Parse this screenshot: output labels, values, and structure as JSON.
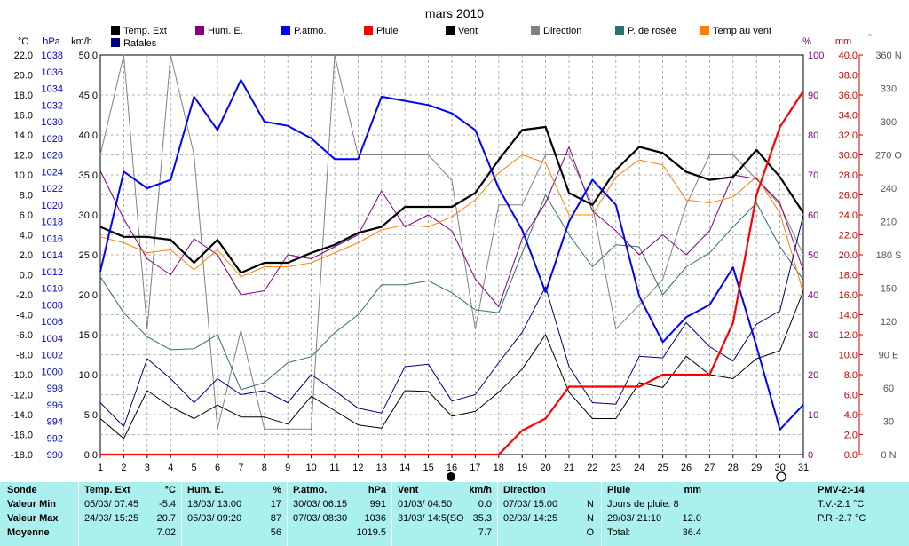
{
  "chart_data": {
    "type": "line",
    "title": "mars 2010",
    "x": [
      1,
      2,
      3,
      4,
      5,
      6,
      7,
      8,
      9,
      10,
      11,
      12,
      13,
      14,
      15,
      16,
      17,
      18,
      19,
      20,
      21,
      22,
      23,
      24,
      25,
      26,
      27,
      28,
      29,
      30,
      31
    ],
    "axes": {
      "temp": {
        "unit": "°C",
        "range": [
          -18,
          22
        ],
        "step": 2
      },
      "pressure": {
        "unit": "hPa",
        "range": [
          990,
          1038
        ],
        "step": 2
      },
      "wind": {
        "unit": "km/h",
        "range": [
          0,
          50
        ],
        "step": 5
      },
      "humidity": {
        "unit": "%",
        "range": [
          0,
          100
        ],
        "step": 10
      },
      "rain": {
        "unit": "mm",
        "range": [
          0,
          40
        ],
        "step": 2
      },
      "direction": {
        "unit": "°",
        "range": [
          0,
          360
        ],
        "step": 30,
        "labels": [
          "0 N",
          "30",
          "60",
          "90 E",
          "120",
          "150",
          "180 S",
          "210",
          "240",
          "270 O",
          "300",
          "330",
          "360 N"
        ]
      }
    },
    "legend": [
      {
        "name": "Temp. Ext",
        "color": "#000000"
      },
      {
        "name": "Hum. E.",
        "color": "#800080"
      },
      {
        "name": "P.atmo.",
        "color": "#0000ff"
      },
      {
        "name": "Pluie",
        "color": "#ff0000"
      },
      {
        "name": "Vent",
        "color": "#000000"
      },
      {
        "name": "Direction",
        "color": "#808080"
      },
      {
        "name": "P. de rosée",
        "color": "#2f6f6f"
      },
      {
        "name": "Temp au vent",
        "color": "#ff8000"
      },
      {
        "name": "Rafales",
        "color": "#000080"
      }
    ],
    "series": [
      {
        "name": "Temp. Ext",
        "axis": "temp",
        "color": "#000000",
        "width": 2.2,
        "values": [
          4.8,
          3.8,
          3.8,
          3.5,
          1.2,
          3.5,
          0.2,
          1.2,
          1.2,
          2.2,
          3.0,
          4.2,
          4.8,
          6.8,
          6.8,
          6.8,
          8.2,
          11.5,
          14.5,
          14.8,
          8.2,
          7.0,
          10.5,
          12.8,
          12.2,
          10.3,
          9.5,
          9.8,
          12.5,
          9.8,
          6.2
        ]
      },
      {
        "name": "Temp au vent",
        "axis": "temp",
        "color": "#ff8000",
        "width": 1,
        "values": [
          3.8,
          3.2,
          2.2,
          2.5,
          0.5,
          2.5,
          -0.2,
          0.8,
          0.8,
          1.2,
          2.2,
          3.2,
          4.5,
          5.0,
          4.8,
          5.8,
          7.5,
          10.2,
          12.0,
          11.2,
          6.0,
          6.0,
          9.8,
          11.5,
          11.0,
          7.5,
          7.2,
          7.8,
          9.8,
          6.2,
          -1.8
        ]
      },
      {
        "name": "P. de rosée",
        "axis": "temp",
        "color": "#2f6f6f",
        "width": 1,
        "values": [
          -0.2,
          -3.8,
          -6.2,
          -7.5,
          -7.4,
          -6.0,
          -11.5,
          -10.8,
          -8.8,
          -8.2,
          -5.8,
          -4.0,
          -1.0,
          -1.0,
          -0.6,
          -1.8,
          -3.5,
          -3.8,
          2.2,
          8.0,
          4.0,
          0.8,
          3.0,
          2.8,
          -2.0,
          0.8,
          2.2,
          4.8,
          7.2,
          2.8,
          -0.5
        ]
      },
      {
        "name": "Hum. E.",
        "axis": "humidity",
        "color": "#800080",
        "width": 1,
        "values": [
          71,
          59,
          49,
          45,
          54,
          50,
          40,
          41,
          50,
          49,
          52,
          55,
          66,
          57,
          60,
          56,
          44,
          37,
          54,
          63,
          77,
          61,
          56,
          50,
          55,
          50,
          56,
          70,
          69,
          63,
          46
        ]
      },
      {
        "name": "P.atmo.",
        "axis": "pressure",
        "color": "#0000ff",
        "width": 2,
        "values": [
          1012,
          1024,
          1022,
          1023,
          1033,
          1029,
          1035,
          1030,
          1029.5,
          1028,
          1025.5,
          1025.5,
          1033,
          1032.5,
          1032,
          1031,
          1029,
          1022,
          1017,
          1009.5,
          1018,
          1023,
          1020,
          1009,
          1003.5,
          1006.5,
          1008,
          1012.5,
          1003,
          993,
          996
        ]
      },
      {
        "name": "Rafales",
        "axis": "wind",
        "color": "#000080",
        "width": 1,
        "values": [
          6.5,
          3.5,
          12,
          9.5,
          6.5,
          9.5,
          7.5,
          8.0,
          6.5,
          10,
          8.0,
          5.8,
          5.2,
          11,
          11.3,
          6.7,
          7.5,
          11.5,
          15.3,
          21,
          11,
          6.5,
          6.3,
          12.3,
          12.1,
          16.5,
          13.5,
          11.7,
          16.3,
          18,
          30
        ]
      },
      {
        "name": "Vent",
        "axis": "wind",
        "color": "#000000",
        "width": 1,
        "values": [
          4.5,
          2.0,
          8.0,
          6.0,
          4.5,
          6.2,
          4.7,
          4.7,
          3.8,
          7.3,
          5.5,
          3.7,
          3.3,
          8.0,
          7.9,
          4.8,
          5.4,
          7.8,
          10.7,
          15.0,
          7.8,
          4.5,
          4.5,
          9.0,
          8.4,
          12.3,
          10.0,
          9.5,
          12.0,
          13,
          20.5
        ]
      },
      {
        "name": "Direction",
        "axis": "direction",
        "color": "#808080",
        "width": 1,
        "values": [
          270,
          360,
          113,
          360,
          270,
          23,
          112,
          23,
          23,
          23,
          360,
          270,
          270,
          270,
          270,
          247,
          113,
          225,
          225,
          270,
          270,
          225,
          113,
          135,
          158,
          225,
          270,
          270,
          248,
          225,
          180
        ]
      },
      {
        "name": "Pluie",
        "axis": "rain",
        "color": "#ff0000",
        "width": 2.2,
        "values": [
          0,
          0,
          0,
          0,
          0,
          0,
          0,
          0,
          0,
          0,
          0,
          0,
          0,
          0,
          0,
          0,
          0,
          0,
          2.4,
          3.6,
          6.8,
          6.8,
          6.8,
          6.8,
          8.0,
          8.0,
          8.0,
          13.2,
          26.0,
          32.8,
          36.4
        ]
      }
    ]
  },
  "table": {
    "sonde": {
      "header": "Sonde",
      "min": "Valeur Min",
      "max": "Valeur Max",
      "avg": "Moyenne"
    },
    "temp": {
      "header": "Temp. Ext",
      "unit": "°C",
      "min_date": "05/03/  07:45",
      "min_val": "-5.4",
      "max_date": "24/03/  15:25",
      "max_val": "20.7",
      "avg": "7.02"
    },
    "hum": {
      "header": "Hum. E.",
      "unit": "%",
      "min_date": "18/03/  13:00",
      "min_val": "17",
      "max_date": "05/03/  09:20",
      "max_val": "87",
      "avg": "56"
    },
    "patmo": {
      "header": "P.atmo.",
      "unit": "hPa",
      "min_date": "30/03/  06:15",
      "min_val": "991",
      "max_date": "07/03/  08:30",
      "max_val": "1036",
      "avg": "1019.5"
    },
    "vent": {
      "header": "Vent",
      "unit": "km/h",
      "min_date": "01/03/  04:50",
      "min_val": "0.0",
      "max_date": "31/03/  14:5(SO",
      "max_val": "35.3",
      "avg": "7.7"
    },
    "dir": {
      "header": "Direction",
      "min_date": "07/03/  15:00",
      "min_val": "N",
      "max_date": "02/03/  14:25",
      "max_val": "N",
      "avg": "O"
    },
    "pluie": {
      "header": "Pluie",
      "unit": "mm",
      "days_label": "Jours de pluie: 8",
      "max_date": "29/03/  21:10",
      "max_val": "12.0",
      "total_label": "Total:",
      "total_val": "36.4"
    },
    "pmv": {
      "header": "PMV-2:-14",
      "tv": "T.V.-2.1 °C",
      "pr": "P.R.-2.7 °C"
    }
  }
}
